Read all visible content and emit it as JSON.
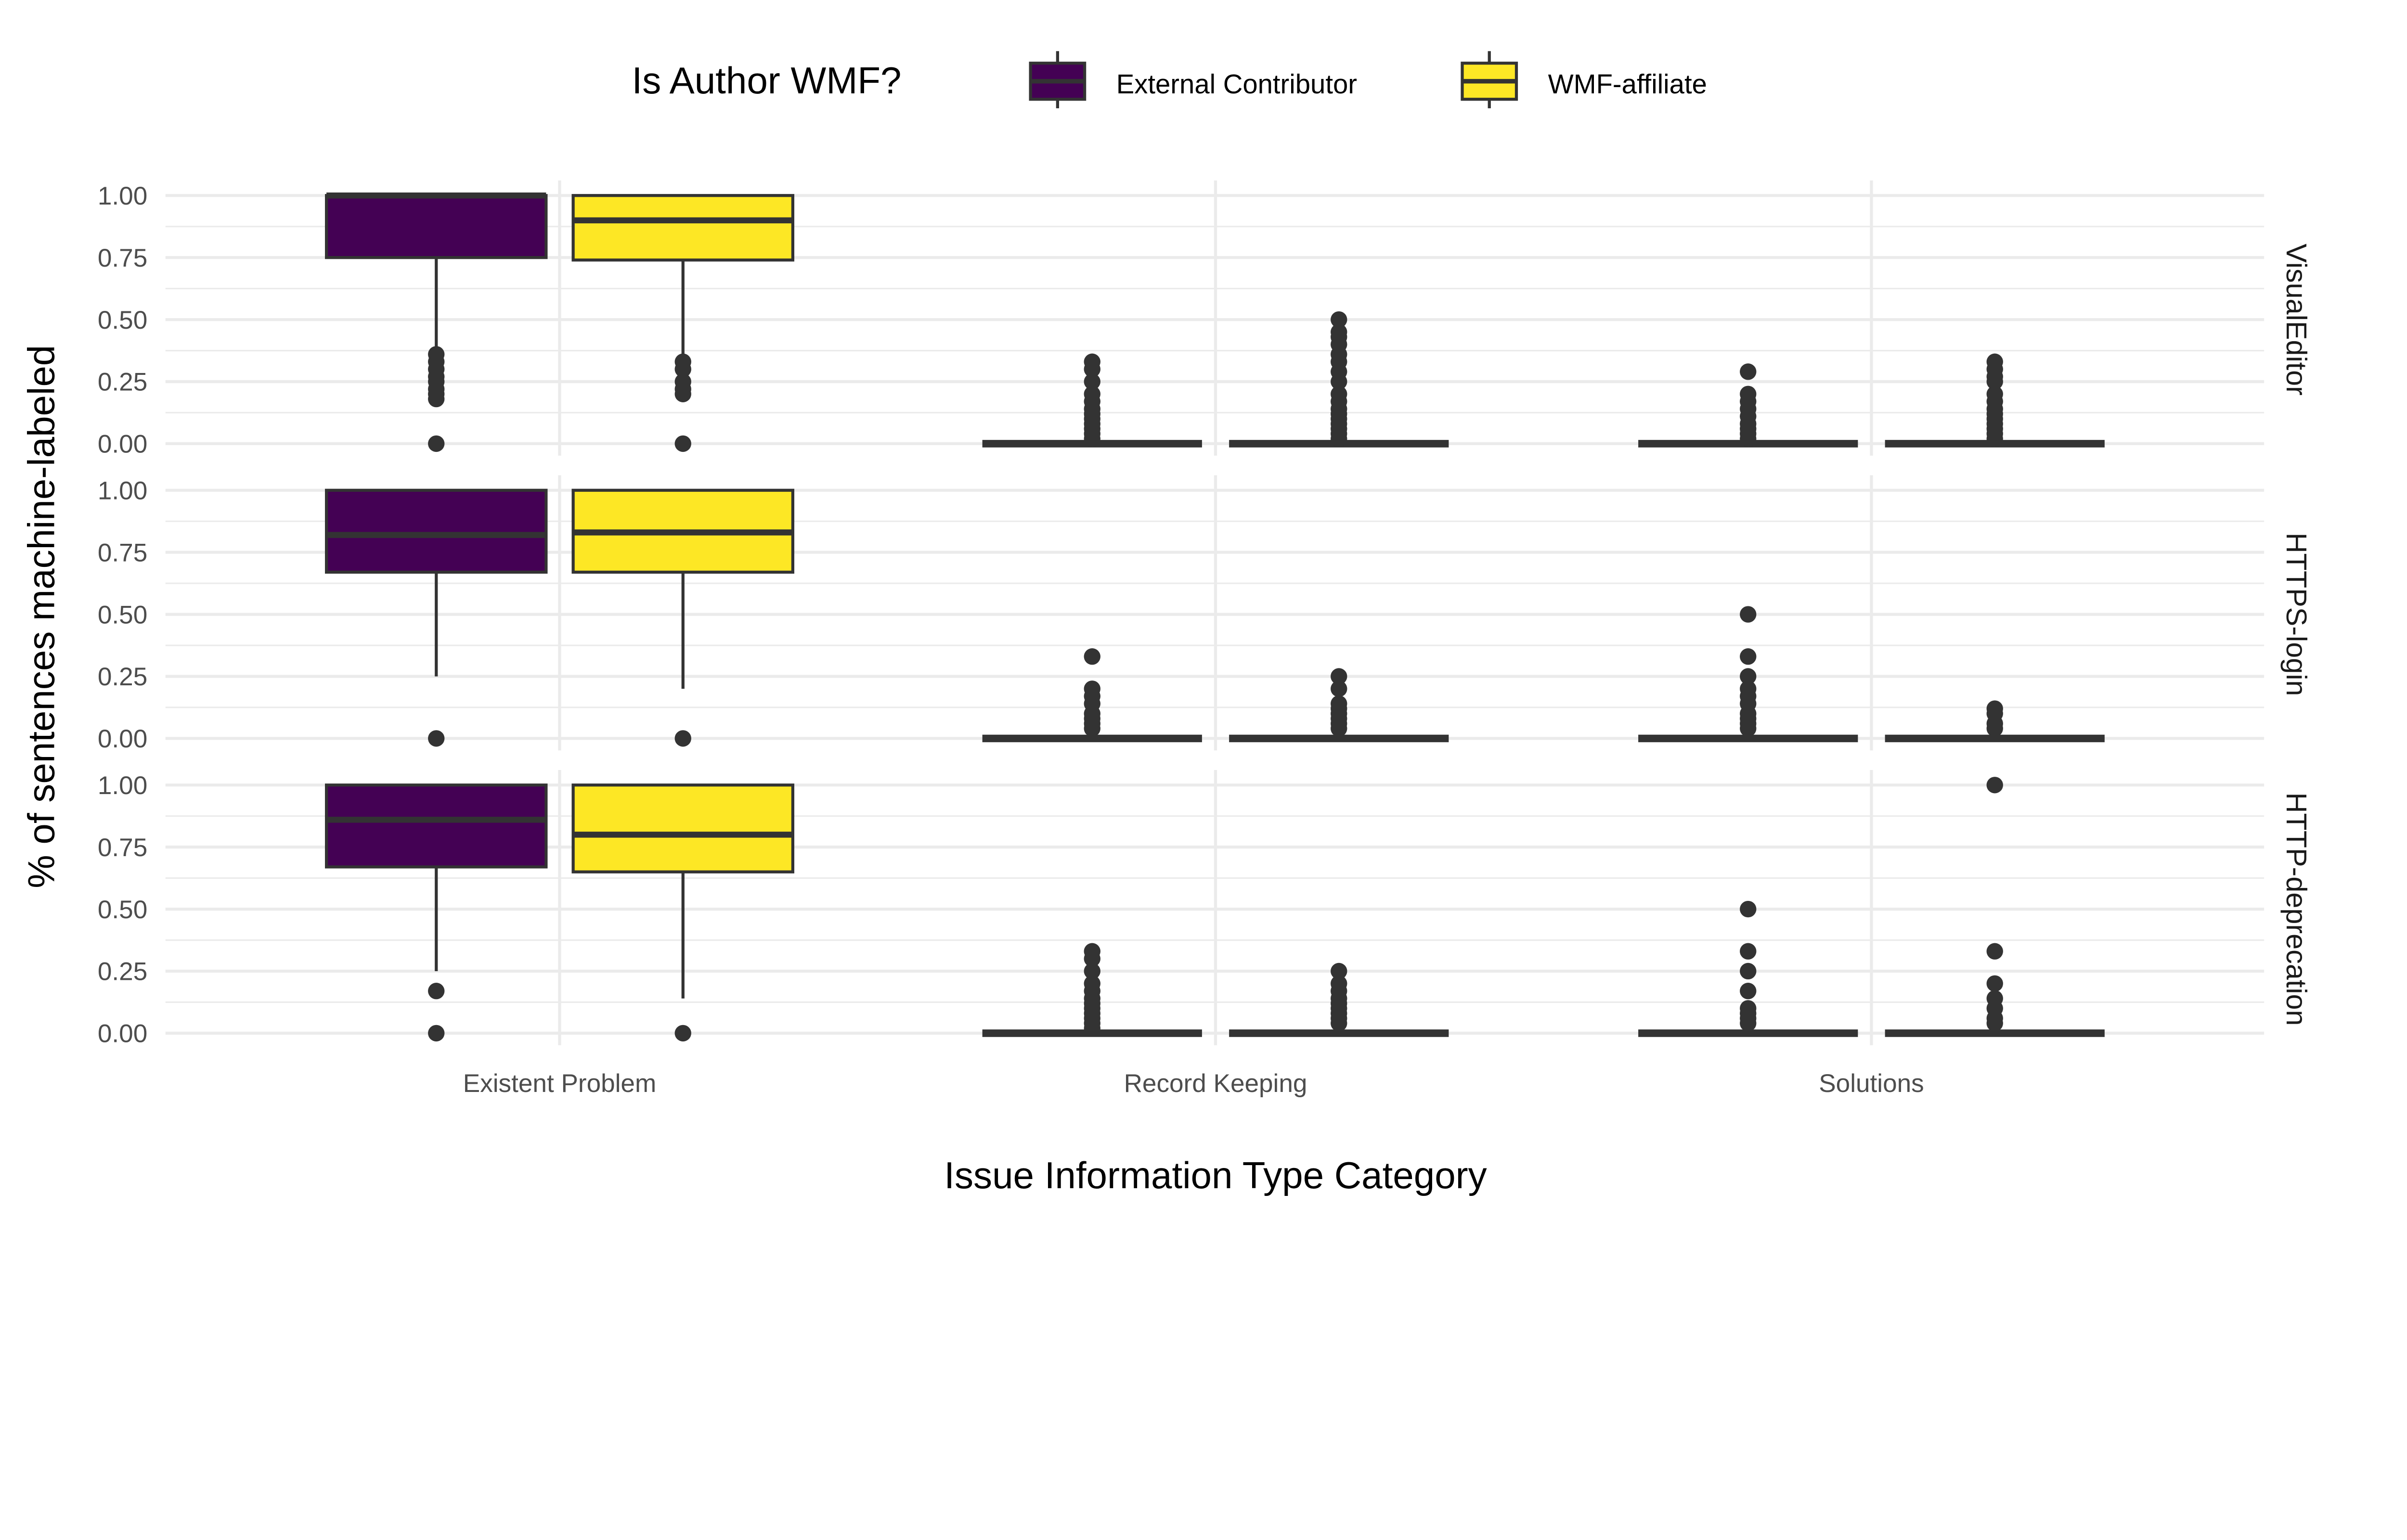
{
  "chart_data": {
    "type": "boxplot",
    "xlabel": "Issue Information Type Category",
    "ylabel": "% of sentences machine-labeled",
    "ylim": [
      0,
      1
    ],
    "yticks": [
      "0.00",
      "0.25",
      "0.50",
      "0.75",
      "1.00"
    ],
    "grid": true,
    "legend": {
      "title": "Is Author WMF?",
      "position": "top",
      "entries": [
        {
          "name": "External Contributor",
          "color": "#440154"
        },
        {
          "name": "WMF-affiliate",
          "color": "#FDE725"
        }
      ]
    },
    "categories": [
      "Existent Problem",
      "Record Keeping",
      "Solutions"
    ],
    "facets": [
      {
        "label": "VisualEditor",
        "boxes": [
          [
            {
              "q1": 0.75,
              "median": 1.0,
              "q3": 1.0,
              "lower": 0.375,
              "upper": 1.0,
              "outliers": [
                0.36,
                0.33,
                0.3,
                0.27,
                0.25,
                0.22,
                0.2,
                0.18,
                0
              ]
            },
            {
              "q1": 0.74,
              "median": 0.9,
              "q3": 1.0,
              "lower": 0.34,
              "upper": 1.0,
              "outliers": [
                0.33,
                0.3,
                0.25,
                0.22,
                0.2,
                0
              ]
            }
          ],
          [
            {
              "q1": 0,
              "median": 0,
              "q3": 0,
              "lower": 0,
              "upper": 0,
              "outliers": [
                0.33,
                0.3,
                0.25,
                0.2,
                0.17,
                0.14,
                0.12,
                0.1,
                0.08,
                0.06,
                0.04,
                0.02
              ]
            },
            {
              "q1": 0,
              "median": 0,
              "q3": 0,
              "lower": 0,
              "upper": 0,
              "outliers": [
                0.5,
                0.45,
                0.43,
                0.4,
                0.36,
                0.33,
                0.29,
                0.25,
                0.2,
                0.17,
                0.14,
                0.12,
                0.1,
                0.08,
                0.06,
                0.04,
                0.02
              ]
            }
          ],
          [
            {
              "q1": 0,
              "median": 0,
              "q3": 0,
              "lower": 0,
              "upper": 0,
              "outliers": [
                0.29,
                0.2,
                0.17,
                0.14,
                0.11,
                0.08,
                0.06,
                0.04,
                0.02
              ]
            },
            {
              "q1": 0,
              "median": 0,
              "q3": 0,
              "lower": 0,
              "upper": 0,
              "outliers": [
                0.33,
                0.3,
                0.27,
                0.25,
                0.2,
                0.17,
                0.14,
                0.12,
                0.1,
                0.08,
                0.06,
                0.04,
                0.02
              ]
            }
          ]
        ]
      },
      {
        "label": "HTTPS-login",
        "boxes": [
          [
            {
              "q1": 0.67,
              "median": 0.82,
              "q3": 1.0,
              "lower": 0.25,
              "upper": 1.0,
              "outliers": [
                0
              ]
            },
            {
              "q1": 0.67,
              "median": 0.83,
              "q3": 1.0,
              "lower": 0.2,
              "upper": 1.0,
              "outliers": [
                0
              ]
            }
          ],
          [
            {
              "q1": 0,
              "median": 0,
              "q3": 0,
              "lower": 0,
              "upper": 0,
              "outliers": [
                0.33,
                0.2,
                0.17,
                0.14,
                0.1,
                0.08,
                0.06,
                0.04
              ]
            },
            {
              "q1": 0,
              "median": 0,
              "q3": 0,
              "lower": 0,
              "upper": 0,
              "outliers": [
                0.25,
                0.2,
                0.14,
                0.12,
                0.1,
                0.08,
                0.06,
                0.04
              ]
            }
          ],
          [
            {
              "q1": 0,
              "median": 0,
              "q3": 0,
              "lower": 0,
              "upper": 0,
              "outliers": [
                0.5,
                0.33,
                0.25,
                0.2,
                0.17,
                0.14,
                0.1,
                0.08,
                0.06,
                0.04
              ]
            },
            {
              "q1": 0,
              "median": 0,
              "q3": 0,
              "lower": 0,
              "upper": 0,
              "outliers": [
                0.12,
                0.1,
                0.06,
                0.04
              ]
            }
          ]
        ]
      },
      {
        "label": "HTTP-deprecation",
        "boxes": [
          [
            {
              "q1": 0.67,
              "median": 0.86,
              "q3": 1.0,
              "lower": 0.25,
              "upper": 1.0,
              "outliers": [
                0.17,
                0
              ]
            },
            {
              "q1": 0.65,
              "median": 0.8,
              "q3": 1.0,
              "lower": 0.14,
              "upper": 1.0,
              "outliers": [
                0
              ]
            }
          ],
          [
            {
              "q1": 0,
              "median": 0,
              "q3": 0,
              "lower": 0,
              "upper": 0,
              "outliers": [
                0.33,
                0.3,
                0.25,
                0.2,
                0.17,
                0.14,
                0.12,
                0.1,
                0.08,
                0.06,
                0.04,
                0.02
              ]
            },
            {
              "q1": 0,
              "median": 0,
              "q3": 0,
              "lower": 0,
              "upper": 0,
              "outliers": [
                0.25,
                0.2,
                0.17,
                0.14,
                0.12,
                0.1,
                0.08,
                0.06,
                0.04
              ]
            }
          ],
          [
            {
              "q1": 0,
              "median": 0,
              "q3": 0,
              "lower": 0,
              "upper": 0,
              "outliers": [
                0.5,
                0.33,
                0.25,
                0.17,
                0.1,
                0.08,
                0.06,
                0.04
              ]
            },
            {
              "q1": 0,
              "median": 0,
              "q3": 0,
              "lower": 0,
              "upper": 0,
              "outliers": [
                1.0,
                0.33,
                0.2,
                0.14,
                0.1,
                0.06,
                0.04
              ]
            }
          ]
        ]
      }
    ]
  }
}
